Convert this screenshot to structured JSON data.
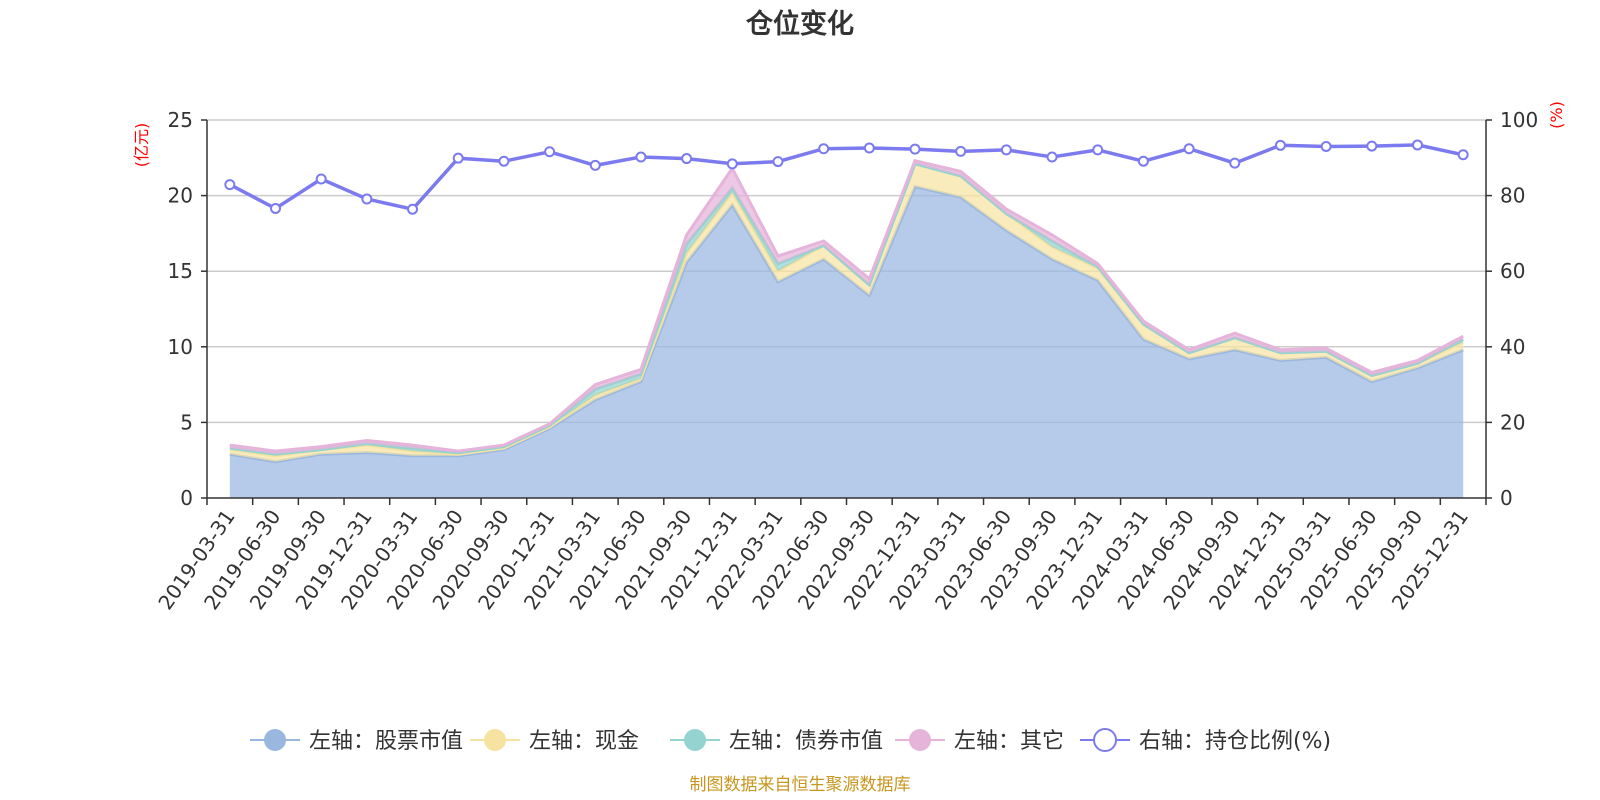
{
  "chart_data": {
    "type": "area",
    "title": "仓位变化",
    "y_left_unit": "(亿元)",
    "y_right_unit": "(%)",
    "y_left_range": [
      0,
      25
    ],
    "y_left_ticks": [
      "0",
      "5",
      "10",
      "15",
      "20",
      "25"
    ],
    "y_right_range": [
      0,
      100
    ],
    "y_right_ticks": [
      "0",
      "20",
      "40",
      "60",
      "80",
      "100"
    ],
    "grid": true,
    "legend_position": "bottom",
    "categories": [
      "2019-03-31",
      "2019-06-30",
      "2019-09-30",
      "2019-12-31",
      "2020-03-31",
      "2020-06-30",
      "2020-09-30",
      "2020-12-31",
      "2021-03-31",
      "2021-06-30",
      "2021-09-30",
      "2021-12-31",
      "2022-03-31",
      "2022-06-30",
      "2022-09-30",
      "2022-12-31",
      "2023-03-31",
      "2023-06-30",
      "2023-09-30",
      "2023-12-31",
      "2024-03-31",
      "2024-06-30",
      "2024-09-30",
      "2024-12-31",
      "2025-03-31",
      "2025-06-30",
      "2025-09-30",
      "2025-12-31"
    ],
    "stacked_series": [
      {
        "name": "左轴：股票市值",
        "axis": "left",
        "color": "#9ab7e0",
        "values": [
          2.9,
          2.4,
          2.9,
          3.0,
          2.8,
          2.8,
          3.2,
          4.6,
          6.5,
          7.7,
          15.6,
          19.4,
          14.3,
          15.8,
          13.4,
          20.6,
          19.9,
          17.7,
          15.8,
          14.4,
          10.5,
          9.2,
          9.8,
          9.1,
          9.3,
          7.7,
          8.6,
          9.8
        ]
      },
      {
        "name": "左轴：现金",
        "axis": "left",
        "color": "#f7e3a1",
        "values": [
          0.3,
          0.4,
          0.3,
          0.5,
          0.3,
          0.1,
          0.1,
          0.1,
          0.3,
          0.2,
          0.6,
          0.8,
          0.7,
          0.9,
          0.7,
          1.5,
          1.4,
          1.1,
          0.8,
          0.8,
          1.0,
          0.4,
          0.8,
          0.5,
          0.4,
          0.4,
          0.3,
          0.5
        ]
      },
      {
        "name": "左轴：债券市值",
        "axis": "left",
        "color": "#93d3d0",
        "values": [
          0.1,
          0.1,
          0.0,
          0.1,
          0.2,
          0.1,
          0.1,
          0.1,
          0.4,
          0.3,
          0.6,
          0.3,
          0.5,
          0.0,
          0.0,
          0.0,
          0.0,
          0.0,
          0.4,
          0.1,
          0.0,
          0.0,
          0.0,
          0.0,
          0.0,
          0.0,
          0.0,
          0.2
        ]
      },
      {
        "name": "左轴：其它",
        "axis": "left",
        "color": "#e6b3da",
        "values": [
          0.2,
          0.2,
          0.2,
          0.2,
          0.2,
          0.1,
          0.1,
          0.1,
          0.3,
          0.3,
          0.6,
          1.3,
          0.5,
          0.3,
          0.4,
          0.2,
          0.3,
          0.3,
          0.4,
          0.2,
          0.2,
          0.2,
          0.3,
          0.2,
          0.2,
          0.2,
          0.2,
          0.2
        ]
      }
    ],
    "line_series": {
      "name": "右轴：持仓比例(%)",
      "axis": "right",
      "color": "#7b7bef",
      "values": [
        82.9,
        76.6,
        84.4,
        79.1,
        76.4,
        89.9,
        89.1,
        91.6,
        88.0,
        90.2,
        89.8,
        88.4,
        89.0,
        92.4,
        92.6,
        92.3,
        91.7,
        92.1,
        90.2,
        92.1,
        89.1,
        92.4,
        88.6,
        93.3,
        93.0,
        93.1,
        93.4,
        90.8
      ]
    },
    "legend": [
      {
        "label": "左轴：股票市值",
        "color": "#9ab7e0",
        "marker": "filled-circle"
      },
      {
        "label": "左轴：现金",
        "color": "#f7e3a1",
        "marker": "filled-circle"
      },
      {
        "label": "左轴：债券市值",
        "color": "#93d3d0",
        "marker": "filled-circle"
      },
      {
        "label": "左轴：其它",
        "color": "#e6b3da",
        "marker": "filled-circle"
      },
      {
        "label": "右轴：持仓比例(%)",
        "color": "#7b7bef",
        "marker": "hollow-circle"
      }
    ]
  },
  "footer": {
    "source": "制图数据来自恒生聚源数据库"
  }
}
